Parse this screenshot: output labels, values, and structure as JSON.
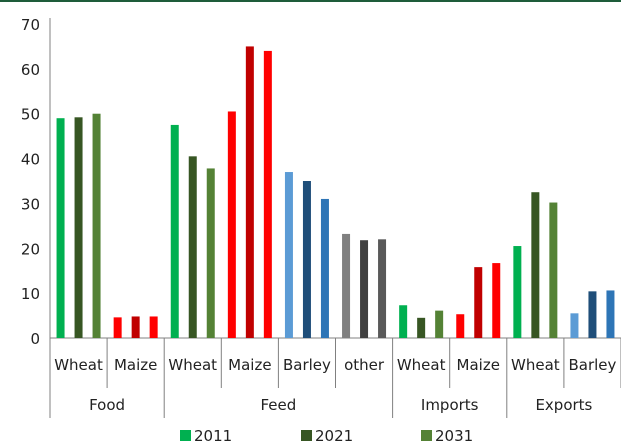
{
  "chart_data": {
    "type": "bar",
    "ylim": [
      0,
      70
    ],
    "yticks": [
      0,
      10,
      20,
      30,
      40,
      50,
      60,
      70
    ],
    "grid": false,
    "legend_position": "bottom",
    "legend": [
      {
        "label": "2011",
        "color": "#00b050"
      },
      {
        "label": "2021",
        "color": "#375623"
      },
      {
        "label": "2031",
        "color": "#548235"
      }
    ],
    "groups": [
      {
        "label": "Food",
        "categories": [
          {
            "label": "Wheat",
            "values": [
              49,
              49.2,
              50
            ],
            "colors": [
              "#00b050",
              "#375623",
              "#548235"
            ]
          },
          {
            "label": "Maize",
            "values": [
              4.6,
              4.8,
              4.8
            ],
            "colors": [
              "#ff0000",
              "#c00000",
              "#ff0000"
            ]
          }
        ]
      },
      {
        "label": "Feed",
        "categories": [
          {
            "label": "Wheat",
            "values": [
              47.5,
              40.5,
              37.8
            ],
            "colors": [
              "#00b050",
              "#375623",
              "#548235"
            ]
          },
          {
            "label": "Maize",
            "values": [
              50.5,
              65,
              64
            ],
            "colors": [
              "#ff0000",
              "#c00000",
              "#ff0000"
            ]
          },
          {
            "label": "Barley",
            "values": [
              37,
              35,
              31
            ],
            "colors": [
              "#5b9bd5",
              "#1f4e79",
              "#2e75b6"
            ]
          },
          {
            "label": "other",
            "values": [
              23.2,
              21.8,
              22
            ],
            "colors": [
              "#808080",
              "#404040",
              "#595959"
            ]
          }
        ]
      },
      {
        "label": "Imports",
        "categories": [
          {
            "label": "Wheat",
            "values": [
              7.3,
              4.5,
              6.1
            ],
            "colors": [
              "#00b050",
              "#375623",
              "#548235"
            ]
          },
          {
            "label": "Maize",
            "values": [
              5.3,
              15.8,
              16.7
            ],
            "colors": [
              "#ff0000",
              "#c00000",
              "#ff0000"
            ]
          }
        ]
      },
      {
        "label": "Exports",
        "categories": [
          {
            "label": "Wheat",
            "values": [
              20.5,
              32.5,
              30.2
            ],
            "colors": [
              "#00b050",
              "#375623",
              "#548235"
            ]
          },
          {
            "label": "Barley",
            "values": [
              5.5,
              10.4,
              10.6
            ],
            "colors": [
              "#5b9bd5",
              "#1f4e79",
              "#2e75b6"
            ]
          }
        ]
      }
    ]
  }
}
